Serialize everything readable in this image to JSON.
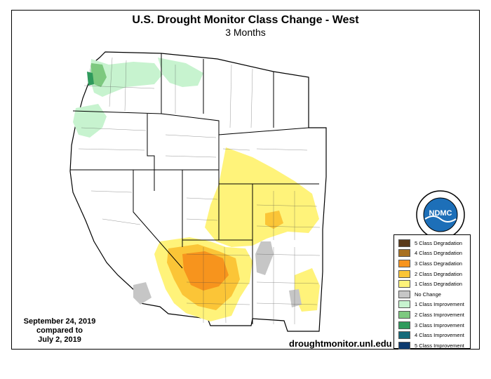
{
  "title": "U.S. Drought Monitor Class Change - West",
  "subtitle": "3 Months",
  "date_text": {
    "line1": "September 24, 2019",
    "line2": "compared to",
    "line3": "July 2, 2019"
  },
  "url": "droughtmonitor.unl.edu",
  "logo": {
    "center_text": "NDMC",
    "ring_top": "NATIONAL DROUGHT MITIGATION CENTER",
    "ring_bottom": "UNIVERSITY OF NEBRASKA"
  },
  "legend": [
    {
      "label": "5 Class Degradation",
      "color": "#5a3a1a"
    },
    {
      "label": "4 Class Degradation",
      "color": "#a87020"
    },
    {
      "label": "3 Class Degradation",
      "color": "#f7941d"
    },
    {
      "label": "2 Class Degradation",
      "color": "#fbc537"
    },
    {
      "label": "1 Class Degradation",
      "color": "#fff37a"
    },
    {
      "label": "No Change",
      "color": "#c6c6c6"
    },
    {
      "label": "1 Class Improvement",
      "color": "#c7f3cf"
    },
    {
      "label": "2 Class Improvement",
      "color": "#7dc97f"
    },
    {
      "label": "3 Class Improvement",
      "color": "#2f9a5c"
    },
    {
      "label": "4 Class Improvement",
      "color": "#146a7a"
    },
    {
      "label": "5 Class Improvement",
      "color": "#0c3a6e"
    }
  ],
  "colors": {
    "land": "#ffffff",
    "border": "#000000",
    "county_line": "#444444",
    "logo_blue": "#1d6fb8"
  }
}
